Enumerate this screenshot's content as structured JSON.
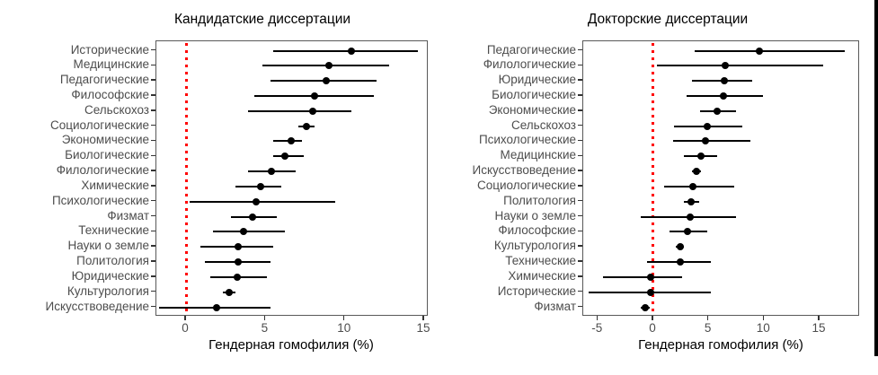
{
  "style": {
    "dot_color": "#000000",
    "errorbar_color": "#000000",
    "refline_color": "#ff0000",
    "axis_text_color": "#4d4d4d",
    "title_color": "#000000",
    "panel_border_color": "#595959"
  },
  "chart_data": [
    {
      "type": "scatter",
      "subtype": "dot_whisker_plot",
      "title": "Кандидатские диссертации",
      "xlabel": "Гендерная гомофилия (%)",
      "ylabel": "",
      "grid": false,
      "legend": false,
      "refline_x": 0,
      "xlim": [
        -1.87,
        15.28
      ],
      "x_tick_values": [
        0,
        5,
        10,
        15
      ],
      "x_tick_labels": [
        "0",
        "5",
        "10",
        "15"
      ],
      "categories": [
        "Исторические",
        "Медицинские",
        "Педагогические",
        "Философские",
        "Сельскохоз",
        "Социологические",
        "Экономические",
        "Биологические",
        "Филологические",
        "Химические",
        "Психологические",
        "Физмат",
        "Технические",
        "Науки о земле",
        "Политология",
        "Юридические",
        "Культурология",
        "Искусствоведение"
      ],
      "values": [
        10.4,
        9.0,
        8.8,
        8.1,
        8.0,
        7.6,
        6.6,
        6.2,
        5.4,
        4.7,
        4.4,
        4.2,
        3.6,
        3.3,
        3.3,
        3.2,
        2.7,
        1.9
      ],
      "ci_low": [
        5.5,
        4.8,
        5.3,
        4.3,
        3.9,
        7.1,
        5.5,
        5.5,
        3.9,
        3.1,
        0.2,
        2.8,
        1.7,
        0.9,
        1.2,
        1.5,
        2.3,
        -1.7
      ],
      "ci_high": [
        14.6,
        12.8,
        12.0,
        11.8,
        10.4,
        8.1,
        7.3,
        7.4,
        6.9,
        6.0,
        9.4,
        5.7,
        6.2,
        5.5,
        5.3,
        5.1,
        3.1,
        5.3
      ]
    },
    {
      "type": "scatter",
      "subtype": "dot_whisker_plot",
      "title": "Докторские диссертации",
      "xlabel": "Гендерная гомофилия (%)",
      "ylabel": "",
      "grid": false,
      "legend": false,
      "refline_x": 0,
      "xlim": [
        -6.32,
        18.65
      ],
      "x_tick_values": [
        -5,
        0,
        5,
        10,
        15
      ],
      "x_tick_labels": [
        "-5",
        "0",
        "5",
        "10",
        "15"
      ],
      "categories": [
        "Педагогические",
        "Филологические",
        "Юридические",
        "Биологические",
        "Экономические",
        "Сельскохоз",
        "Психологические",
        "Медицинские",
        "Искусствоведение",
        "Социологические",
        "Политология",
        "Науки о земле",
        "Философские",
        "Культурология",
        "Технические",
        "Химические",
        "Исторические",
        "Физмат"
      ],
      "values": [
        9.6,
        6.5,
        6.4,
        6.3,
        5.8,
        4.9,
        4.7,
        4.3,
        3.9,
        3.6,
        3.4,
        3.3,
        3.1,
        2.4,
        2.4,
        -0.2,
        -0.2,
        -0.7
      ],
      "ci_low": [
        3.7,
        0.3,
        3.5,
        3.0,
        4.2,
        1.9,
        1.8,
        2.8,
        3.5,
        1.0,
        2.8,
        -1.1,
        1.5,
        2.0,
        -0.6,
        -4.5,
        -5.8,
        -1.1
      ],
      "ci_high": [
        17.3,
        15.3,
        8.9,
        9.9,
        7.5,
        8.0,
        8.8,
        5.8,
        4.3,
        7.3,
        4.1,
        7.5,
        4.9,
        2.8,
        5.2,
        2.6,
        5.2,
        -0.3
      ]
    }
  ]
}
